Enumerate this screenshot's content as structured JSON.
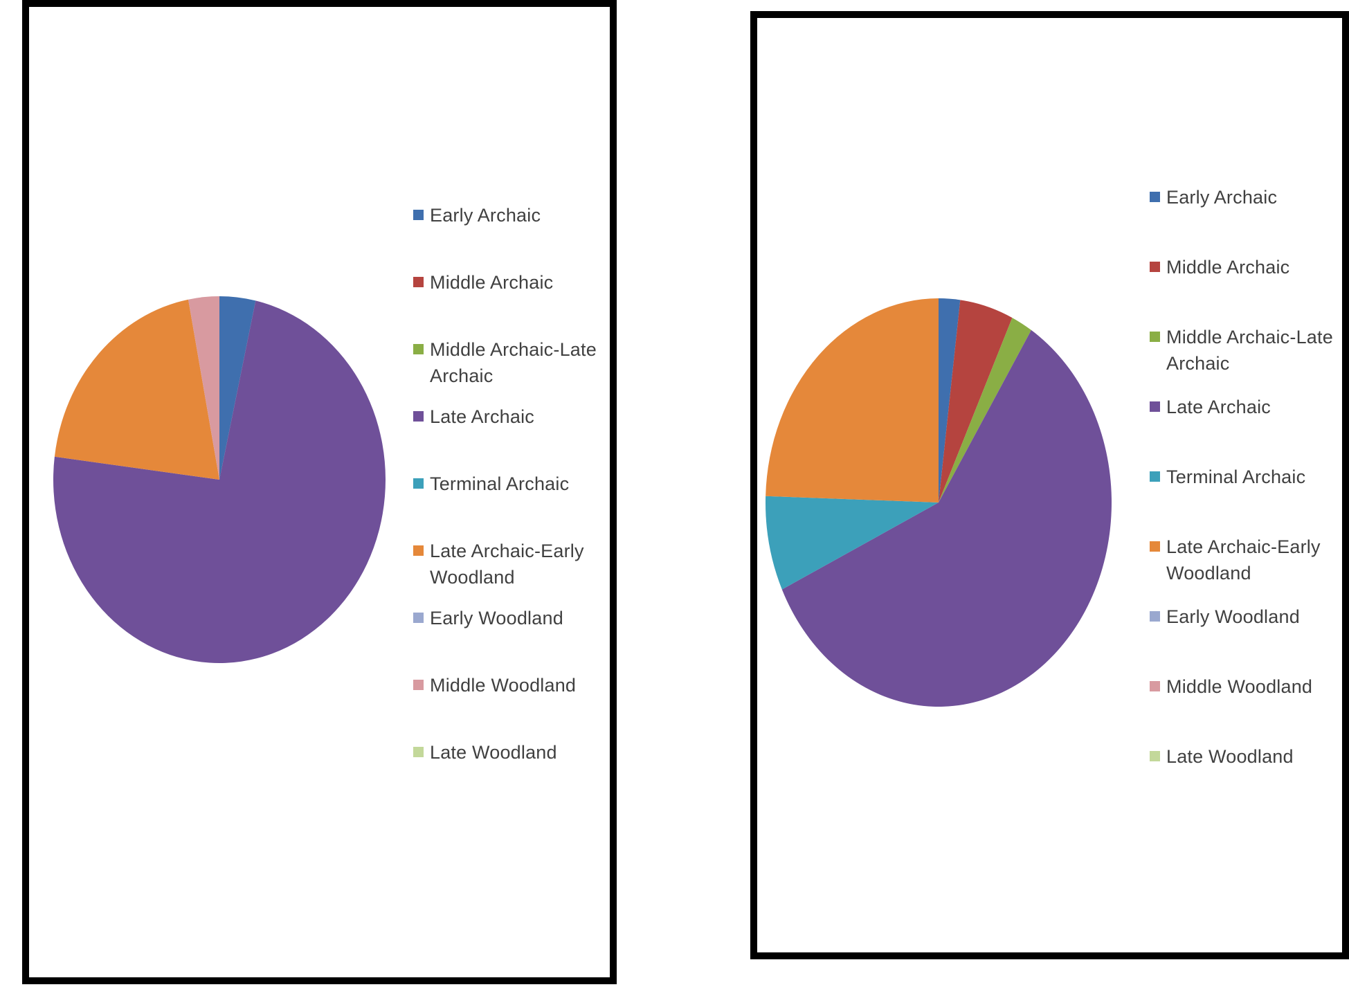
{
  "chart_data": [
    {
      "type": "pie",
      "legend_position": "right",
      "categories": [
        "Early Archaic",
        "Middle Archaic",
        "Middle Archaic-Late Archaic",
        "Late Archaic",
        "Terminal Archaic",
        "Late Archaic-Early Woodland",
        "Early Woodland",
        "Middle Woodland",
        "Late Woodland"
      ],
      "values": [
        3.5,
        0,
        0,
        73.5,
        0,
        20,
        0,
        3,
        0
      ],
      "colors": [
        "#3F6FAE",
        "#B5443F",
        "#8AAE45",
        "#6F5099",
        "#3CA0BA",
        "#E5883A",
        "#9AA8CF",
        "#D89AA0",
        "#C3D89A"
      ]
    },
    {
      "type": "pie",
      "legend_position": "right",
      "categories": [
        "Early Archaic",
        "Middle Archaic",
        "Middle Archaic-Late Archaic",
        "Late Archaic",
        "Terminal Archaic",
        "Late Archaic-Early Woodland",
        "Early Woodland",
        "Middle Woodland",
        "Late Woodland"
      ],
      "values": [
        2,
        5,
        2,
        59,
        7.5,
        24.5,
        0,
        0,
        0
      ],
      "colors": [
        "#3F6FAE",
        "#B5443F",
        "#8AAE45",
        "#6F5099",
        "#3CA0BA",
        "#E5883A",
        "#9AA8CF",
        "#D89AA0",
        "#C3D89A"
      ]
    }
  ],
  "legend_labels": [
    [
      "Early Archaic",
      "Middle Archaic",
      "Middle Archaic-Late Archaic",
      "Late Archaic",
      "Terminal Archaic",
      "Late Archaic-Early Woodland",
      "Early Woodland",
      "Middle Woodland",
      "Late Woodland"
    ],
    [
      "Early Archaic",
      "Middle Archaic",
      "Middle Archaic-Late Archaic",
      "Late Archaic",
      "Terminal Archaic",
      "Late Archaic-Early Woodland",
      "Early Woodland",
      "Middle Woodland",
      "Late Woodland"
    ]
  ]
}
